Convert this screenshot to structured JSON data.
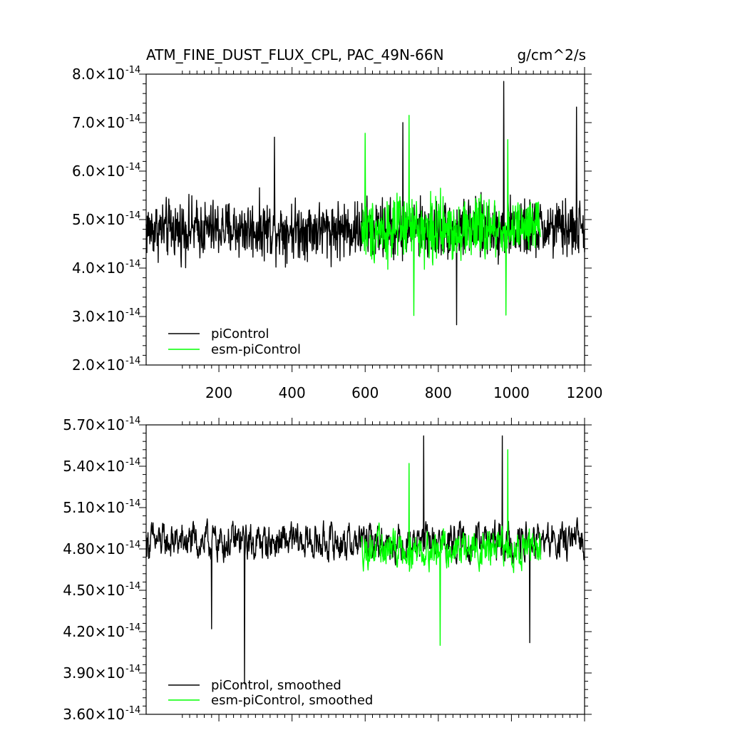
{
  "chart_data": [
    {
      "type": "line",
      "title": "ATM_FINE_DUST_FLUX_CPL, PAC_49N-66N",
      "units": "g/cm^2/s",
      "xlim": [
        1,
        1200
      ],
      "ylim": [
        2e-14,
        8e-14
      ],
      "x_ticks": [
        200,
        400,
        600,
        800,
        1000,
        1200
      ],
      "x_tick_labels": [
        "200",
        "400",
        "600",
        "800",
        "1000",
        "1200"
      ],
      "y_ticks": [
        {
          "mant": "2.0",
          "times": "×10",
          "exp": "-14",
          "value": 2e-14
        },
        {
          "mant": "3.0",
          "times": "×10",
          "exp": "-14",
          "value": 3e-14
        },
        {
          "mant": "4.0",
          "times": "×10",
          "exp": "-14",
          "value": 4e-14
        },
        {
          "mant": "5.0",
          "times": "×10",
          "exp": "-14",
          "value": 5e-14
        },
        {
          "mant": "6.0",
          "times": "×10",
          "exp": "-14",
          "value": 6e-14
        },
        {
          "mant": "7.0",
          "times": "×10",
          "exp": "-14",
          "value": 7e-14
        },
        {
          "mant": "8.0",
          "times": "×10",
          "exp": "-14",
          "value": 8e-14
        }
      ],
      "legend_position": "bottom-left",
      "series": [
        {
          "name": "piControl",
          "color": "#000000",
          "x_start": 1,
          "x_end": 1200,
          "mean": 4.8e-14,
          "spread": 5.5e-15,
          "peaks": [
            [
              979,
              7.85e-14
            ],
            [
              1178,
              7.32e-14
            ],
            [
              703,
              7e-14
            ],
            [
              352,
              6.7e-14
            ],
            [
              850,
              2.83e-14
            ]
          ]
        },
        {
          "name": "esm-piControl",
          "color": "#00ff00",
          "x_start": 590,
          "x_end": 1080,
          "mean": 4.8e-14,
          "spread": 6e-15,
          "peaks": [
            [
              720,
              7.15e-14
            ],
            [
              600,
              6.78e-14
            ],
            [
              990,
              6.65e-14
            ],
            [
              733,
              3.02e-14
            ],
            [
              985,
              3.03e-14
            ]
          ]
        }
      ]
    },
    {
      "type": "line",
      "xlim": [
        1,
        1200
      ],
      "ylim": [
        3.6e-14,
        5.7e-14
      ],
      "x_ticks": [
        200,
        400,
        600,
        800,
        1000,
        1200
      ],
      "y_ticks": [
        {
          "mant": "3.60",
          "times": "×10",
          "exp": "-14",
          "value": 3.6e-14
        },
        {
          "mant": "3.90",
          "times": "×10",
          "exp": "-14",
          "value": 3.9e-14
        },
        {
          "mant": "4.20",
          "times": "×10",
          "exp": "-14",
          "value": 4.2e-14
        },
        {
          "mant": "4.50",
          "times": "×10",
          "exp": "-14",
          "value": 4.5e-14
        },
        {
          "mant": "4.80",
          "times": "×10",
          "exp": "-14",
          "value": 4.8e-14
        },
        {
          "mant": "5.10",
          "times": "×10",
          "exp": "-14",
          "value": 5.1e-14
        },
        {
          "mant": "5.40",
          "times": "×10",
          "exp": "-14",
          "value": 5.4e-14
        },
        {
          "mant": "5.70",
          "times": "×10",
          "exp": "-14",
          "value": 5.7e-14
        }
      ],
      "legend_position": "bottom-left",
      "series": [
        {
          "name": "piControl, smoothed",
          "color": "#000000",
          "x_start": 1,
          "x_end": 1200,
          "mean": 4.85e-14,
          "spread": 2.2e-15,
          "peaks": [
            [
              270,
              3.82e-14
            ],
            [
              760,
              5.62e-14
            ],
            [
              975,
              5.62e-14
            ],
            [
              1050,
              4.12e-14
            ],
            [
              180,
              4.22e-14
            ]
          ]
        },
        {
          "name": "esm-piControl, smoothed",
          "color": "#00ff00",
          "x_start": 590,
          "x_end": 1080,
          "mean": 4.8e-14,
          "spread": 2.2e-15,
          "peaks": [
            [
              990,
              5.52e-14
            ],
            [
              720,
              5.42e-14
            ],
            [
              805,
              4.1e-14
            ]
          ]
        }
      ]
    }
  ]
}
